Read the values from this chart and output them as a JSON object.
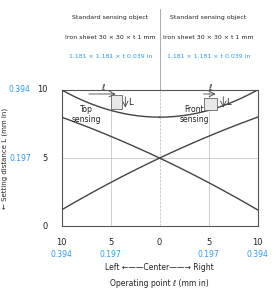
{
  "bg_color": "#ffffff",
  "curve_color": "#444444",
  "grid_color": "#bbbbbb",
  "text_blue": "#3399ee",
  "text_dark": "#222222",
  "xlim": [
    -10,
    10
  ],
  "ylim": [
    0,
    10
  ],
  "xticks": [
    -10,
    -5,
    0,
    5,
    10
  ],
  "yticks": [
    0,
    5,
    10
  ],
  "xtick_mm": [
    "10",
    "5",
    "0",
    "5",
    "10"
  ],
  "xtick_in": [
    "0.394",
    "0.197",
    "",
    "0.197",
    "0.394"
  ],
  "ytick_mm": [
    "0",
    "5",
    "10"
  ],
  "ytick_in": [
    "",
    "0.197",
    "0.394"
  ],
  "left_label": "Top\nsensing",
  "right_label": "Front\nsensing",
  "header_left_l1": "Standard sensing object",
  "header_left_l2": "Iron sheet 30 × 30 × t 1 mm",
  "header_left_l3": "1.181 × 1.181 × t 0.039 in",
  "header_right_l1": "Standard sensing object",
  "header_right_l2": "Iron sheet 30 × 30 × t 1 mm",
  "header_right_l3": "1.181 × 1.181 × t 0.039 in",
  "xlabel1": "Operating point ℓ (mm in)",
  "xlabel2": "Left ←——Center——→ Right",
  "ylabel_arrow": "←",
  "ylabel_text": " Setting distance L (mm in)"
}
